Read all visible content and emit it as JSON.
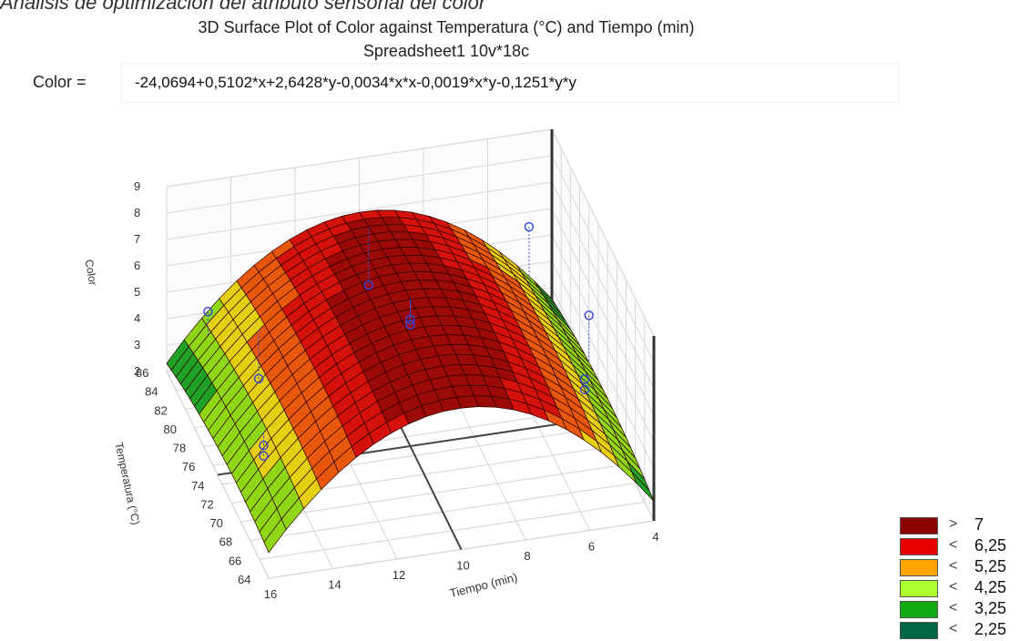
{
  "caption": "Análisis de optimización del atributo sensorial del color",
  "chart_data": {
    "type": "surface3d",
    "title": "3D Surface Plot of Color against Temperatura (°C) and Tiempo (min)",
    "subtitle": "Spreadsheet1 10v*18c",
    "equation_label": "Color =",
    "equation": "-24,0694+0,5102*x+2,6428*y-0,0034*x*x-0,0019*x*y-0,1251*y*y",
    "coefficients": {
      "const": -24.0694,
      "x": 0.5102,
      "y": 2.6428,
      "xx": -0.0034,
      "xy": -0.0019,
      "yy": -0.1251
    },
    "zlabel": "Color",
    "xlabel": "Temperatura (°C)",
    "ylabel": "Tiempo (min)",
    "z_ticks": [
      "2",
      "3",
      "4",
      "5",
      "6",
      "7",
      "8",
      "9"
    ],
    "temp_ticks": [
      "64",
      "66",
      "68",
      "70",
      "72",
      "74",
      "76",
      "78",
      "80",
      "82",
      "84",
      "86"
    ],
    "time_ticks": [
      "16",
      "14",
      "12",
      "10",
      "8",
      "6",
      "4"
    ],
    "zlim": [
      2,
      9
    ],
    "temp_range": [
      64,
      86
    ],
    "time_range": [
      4,
      16
    ],
    "points": [
      {
        "temperature": 72,
        "time": 15,
        "color": 4.0
      },
      {
        "temperature": 72,
        "time": 15,
        "color": 3.6
      },
      {
        "temperature": 84,
        "time": 15,
        "color": 4.8
      },
      {
        "temperature": 80,
        "time": 14,
        "color": 3.5
      },
      {
        "temperature": 75,
        "time": 10,
        "color": 6.6
      },
      {
        "temperature": 75,
        "time": 10,
        "color": 6.8
      },
      {
        "temperature": 84,
        "time": 5,
        "color": 6.2
      },
      {
        "temperature": 84,
        "time": 10,
        "color": 4.9
      },
      {
        "temperature": 72,
        "time": 5,
        "color": 4.7
      },
      {
        "temperature": 72,
        "time": 5,
        "color": 4.3
      },
      {
        "temperature": 78,
        "time": 4,
        "color": 4.8
      }
    ],
    "legend": [
      {
        "symbol": ">",
        "label": "7",
        "color": "#8b0000"
      },
      {
        "symbol": "<",
        "label": "6,25",
        "color": "#e60000"
      },
      {
        "symbol": "<",
        "label": "5,25",
        "color": "#ffa500"
      },
      {
        "symbol": "<",
        "label": "4,25",
        "color": "#adff2f"
      },
      {
        "symbol": "<",
        "label": "3,25",
        "color": "#11aa11"
      },
      {
        "symbol": "<",
        "label": "2,25",
        "color": "#006644"
      }
    ]
  }
}
